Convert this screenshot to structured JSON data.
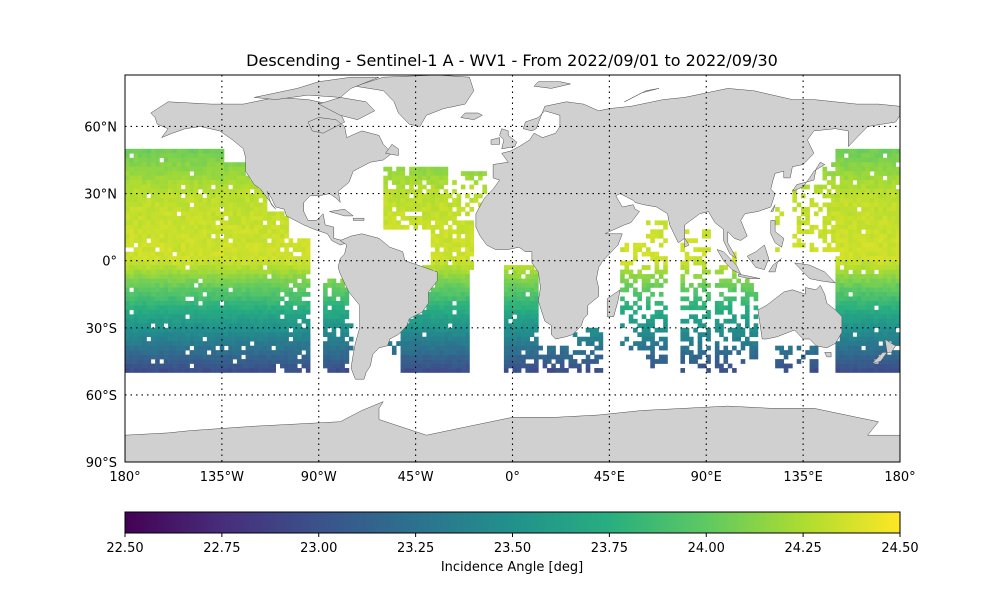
{
  "title": "Descending - Sentinel-1 A - WV1 - From 2022/09/01 to 2022/09/30",
  "chart_data": {
    "type": "heatmap",
    "projection": "plate-carree",
    "xlim": [
      -180,
      180
    ],
    "ylim": [
      -90,
      90
    ],
    "grid": true,
    "x_ticks": [
      {
        "value": -180,
        "label": "180°"
      },
      {
        "value": -135,
        "label": "135°W"
      },
      {
        "value": -90,
        "label": "90°W"
      },
      {
        "value": -45,
        "label": "45°W"
      },
      {
        "value": 0,
        "label": "0°"
      },
      {
        "value": 45,
        "label": "45°E"
      },
      {
        "value": 90,
        "label": "90°E"
      },
      {
        "value": 135,
        "label": "135°E"
      },
      {
        "value": 180,
        "label": "180°"
      }
    ],
    "y_ticks": [
      {
        "value": 60,
        "label": "60°N"
      },
      {
        "value": 30,
        "label": "30°N"
      },
      {
        "value": 0,
        "label": "0°"
      },
      {
        "value": -30,
        "label": "30°S"
      },
      {
        "value": -60,
        "label": "60°S"
      },
      {
        "value": -90,
        "label": "90°S"
      }
    ],
    "data_lat_range": [
      -50,
      50
    ],
    "colorbar": {
      "label": "Incidence Angle [deg]",
      "colormap": "viridis",
      "vmin": 22.5,
      "vmax": 24.5,
      "ticks": [
        "22.50",
        "22.75",
        "23.00",
        "23.25",
        "23.50",
        "23.75",
        "24.00",
        "24.25",
        "24.50"
      ]
    }
  },
  "colors": {
    "land": "#d0d0d0",
    "coast": "#4a4a4a",
    "grid": "#000000",
    "background": "#ffffff"
  }
}
